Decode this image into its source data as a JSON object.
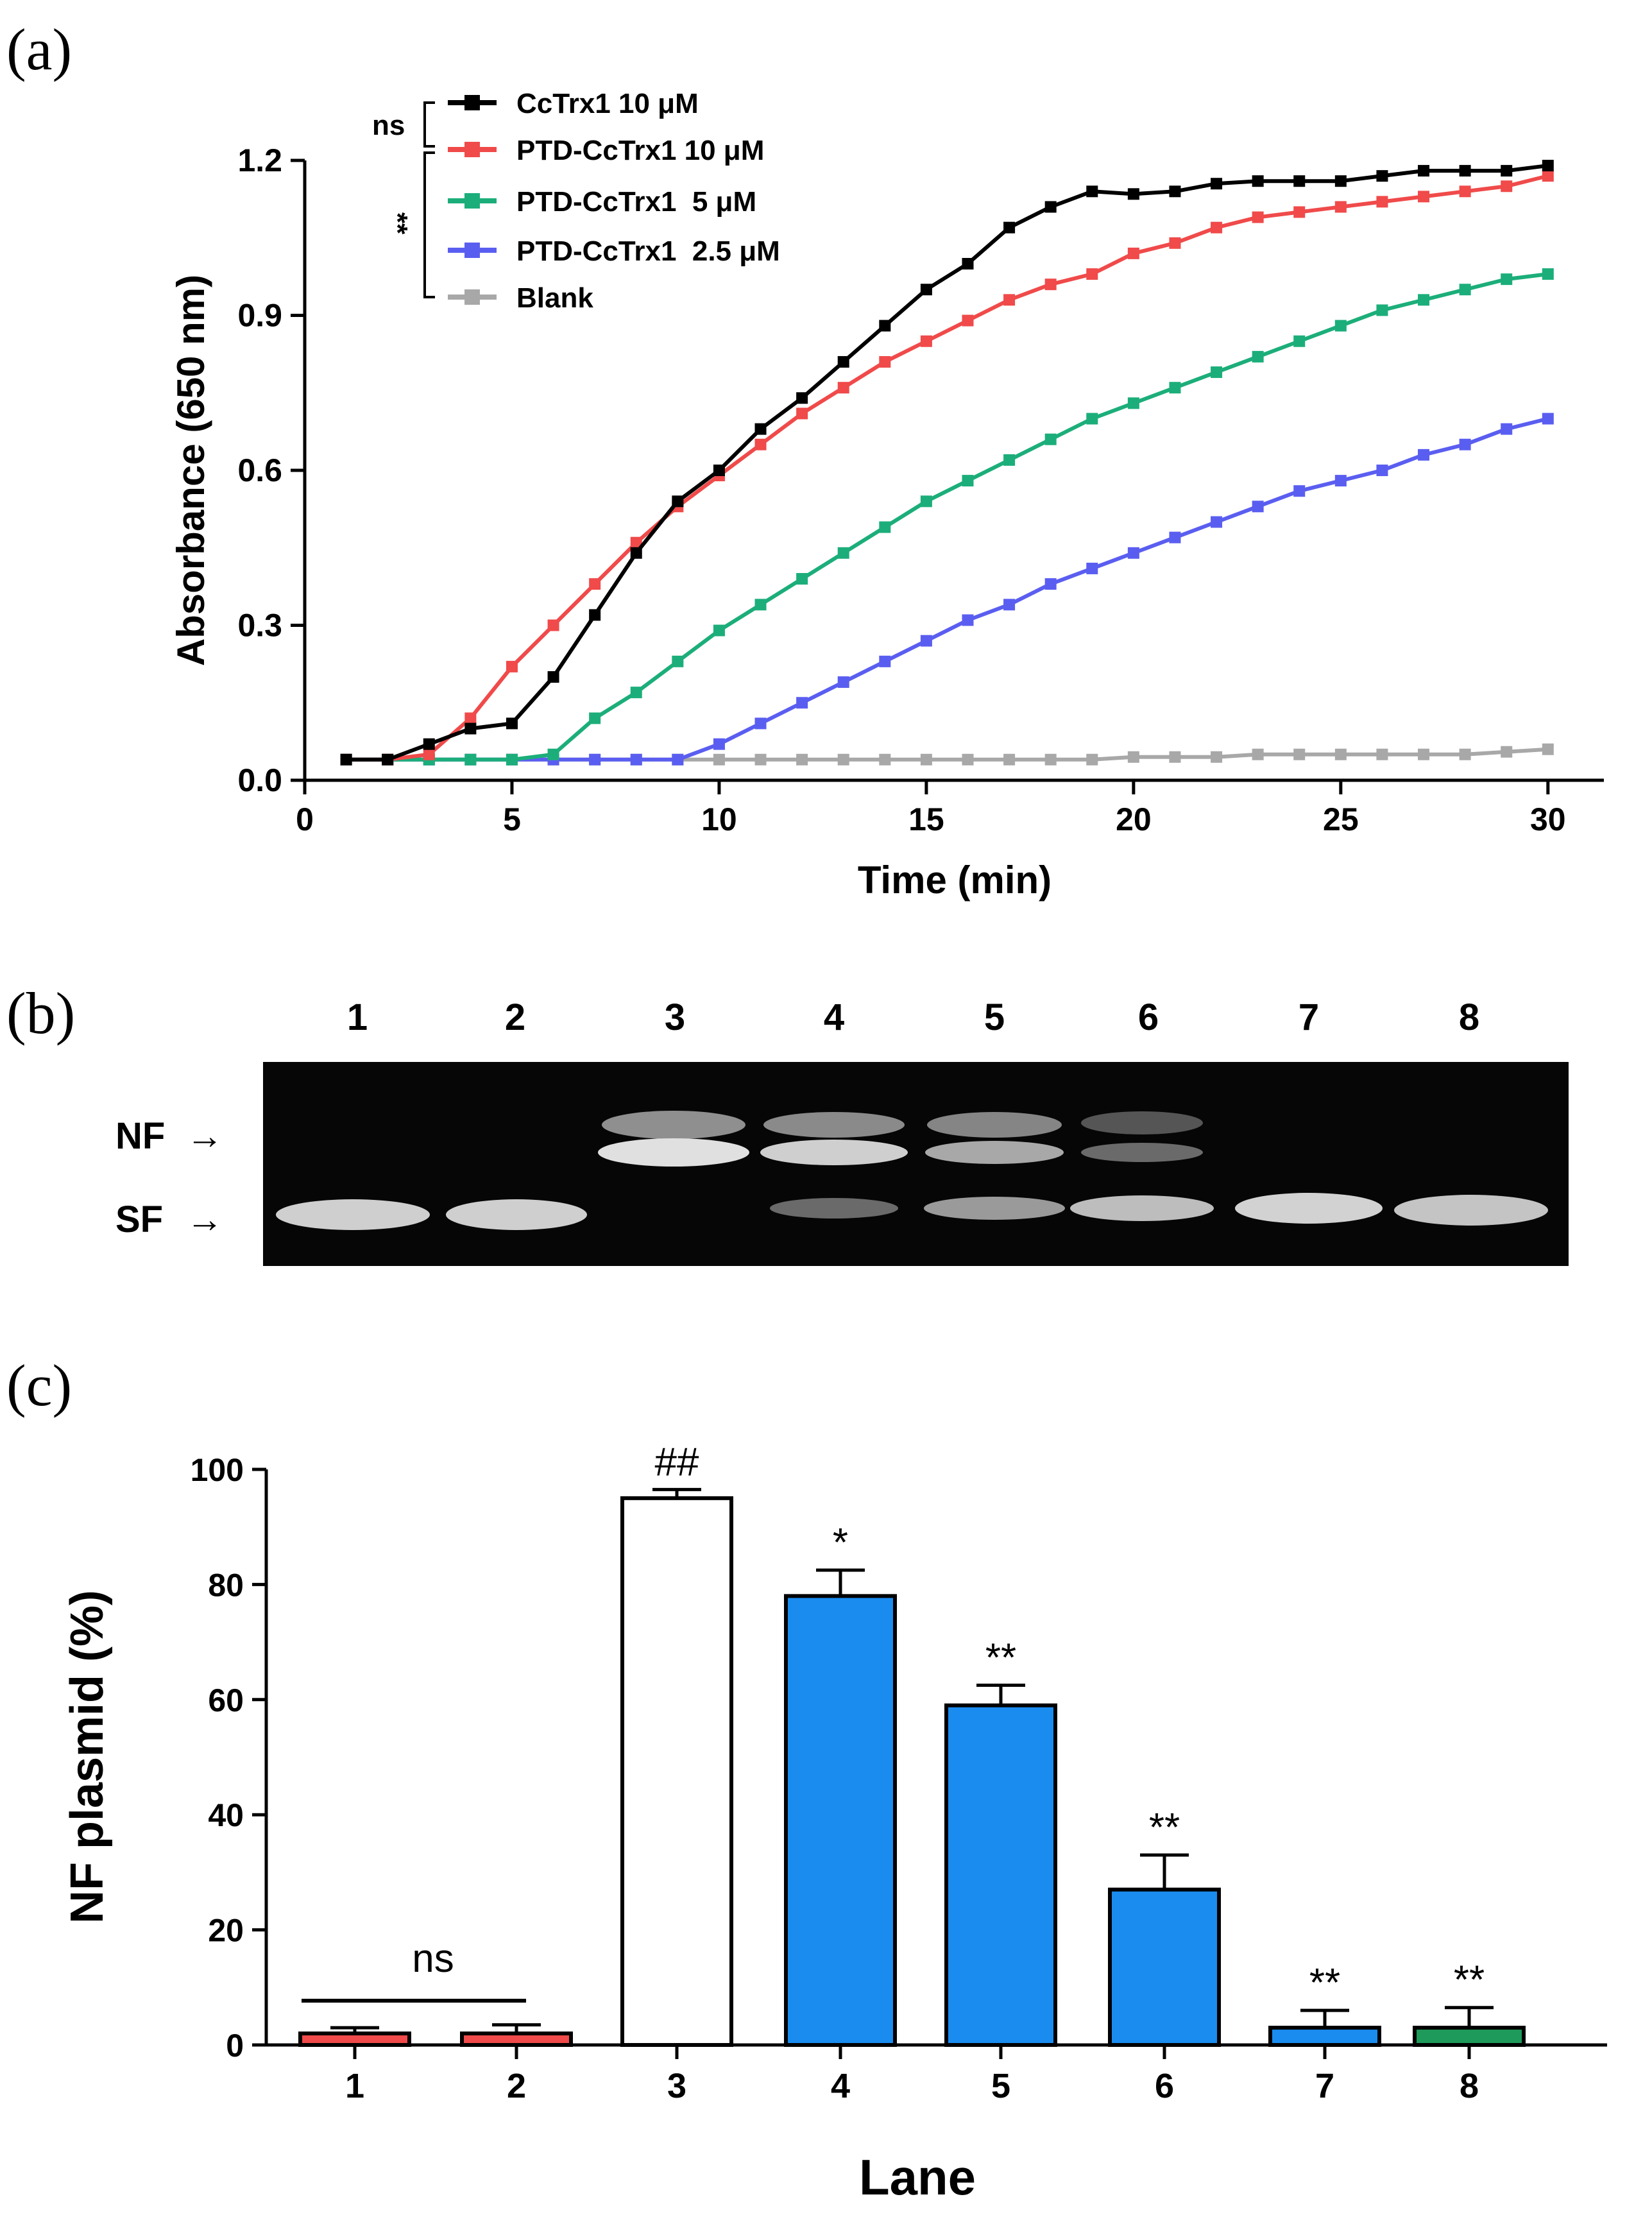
{
  "panel_labels": {
    "a": "(a)",
    "b": "(b)",
    "c": "(c)"
  },
  "chart_data": [
    {
      "type": "line",
      "panel": "(a)",
      "title": "",
      "xlabel": "Time (min)",
      "ylabel": "Absorbance (650 nm)",
      "xlim": [
        0,
        32
      ],
      "ylim": [
        0,
        1.2
      ],
      "xticks": [
        0,
        5,
        10,
        15,
        20,
        25,
        30
      ],
      "xtick_labels": [
        "0",
        "5",
        "10",
        "15",
        "20",
        "25",
        "30"
      ],
      "yticks": [
        0,
        0.3,
        0.6,
        0.9,
        1.2
      ],
      "ytick_labels": [
        "0.0",
        "0.3",
        "0.6",
        "0.9",
        "1.2"
      ],
      "x": [
        1,
        2,
        3,
        4,
        5,
        6,
        7,
        8,
        9,
        10,
        11,
        12,
        13,
        14,
        15,
        16,
        17,
        18,
        19,
        20,
        21,
        22,
        23,
        24,
        25,
        26,
        27,
        28,
        29,
        30
      ],
      "series": [
        {
          "name": "CcTrx1 10 μM",
          "color": "#000000",
          "values": [
            0.04,
            0.04,
            0.07,
            0.1,
            0.11,
            0.2,
            0.32,
            0.44,
            0.54,
            0.6,
            0.68,
            0.74,
            0.81,
            0.88,
            0.95,
            1.0,
            1.07,
            1.11,
            1.14,
            1.135,
            1.14,
            1.155,
            1.16,
            1.16,
            1.16,
            1.17,
            1.18,
            1.18,
            1.18,
            1.19
          ]
        },
        {
          "name": "PTD-CcTrx1 10 μM",
          "color": "#f04a4a",
          "values": [
            0.04,
            0.04,
            0.05,
            0.12,
            0.22,
            0.3,
            0.38,
            0.46,
            0.53,
            0.59,
            0.65,
            0.71,
            0.76,
            0.81,
            0.85,
            0.89,
            0.93,
            0.96,
            0.98,
            1.02,
            1.04,
            1.07,
            1.09,
            1.1,
            1.11,
            1.12,
            1.13,
            1.14,
            1.15,
            1.17
          ]
        },
        {
          "name": "PTD-CcTrx1  5 μM",
          "color": "#1cae7a",
          "values": [
            0.04,
            0.04,
            0.04,
            0.04,
            0.04,
            0.05,
            0.12,
            0.17,
            0.23,
            0.29,
            0.34,
            0.39,
            0.44,
            0.49,
            0.54,
            0.58,
            0.62,
            0.66,
            0.7,
            0.73,
            0.76,
            0.79,
            0.82,
            0.85,
            0.88,
            0.91,
            0.93,
            0.95,
            0.97,
            0.98
          ]
        },
        {
          "name": "PTD-CcTrx1  2.5 μM",
          "color": "#5a5ef0",
          "values": [
            0.04,
            0.04,
            0.04,
            0.04,
            0.04,
            0.04,
            0.04,
            0.04,
            0.04,
            0.07,
            0.11,
            0.15,
            0.19,
            0.23,
            0.27,
            0.31,
            0.34,
            0.38,
            0.41,
            0.44,
            0.47,
            0.5,
            0.53,
            0.56,
            0.58,
            0.6,
            0.63,
            0.65,
            0.68,
            0.7
          ]
        },
        {
          "name": "Blank",
          "color": "#a8a8a8",
          "values": [
            0.04,
            0.04,
            0.04,
            0.04,
            0.04,
            0.04,
            0.04,
            0.04,
            0.04,
            0.04,
            0.04,
            0.04,
            0.04,
            0.04,
            0.04,
            0.04,
            0.04,
            0.04,
            0.04,
            0.045,
            0.045,
            0.045,
            0.05,
            0.05,
            0.05,
            0.05,
            0.05,
            0.05,
            0.055,
            0.06
          ]
        }
      ],
      "significance": [
        {
          "label": "ns",
          "groups": [
            "CcTrx1 10 μM",
            "PTD-CcTrx1 10 μM"
          ]
        },
        {
          "label": "**",
          "groups": [
            "PTD-CcTrx1 10 μM",
            "PTD-CcTrx1  5 μM",
            "PTD-CcTrx1  2.5 μM",
            "Blank"
          ]
        }
      ]
    },
    {
      "type": "bar",
      "panel": "(c)",
      "title": "",
      "xlabel": "Lane",
      "ylabel": "NF plasmid (%)",
      "ylim": [
        0,
        100
      ],
      "yticks": [
        0,
        20,
        40,
        60,
        80,
        100
      ],
      "ytick_labels": [
        "0",
        "20",
        "40",
        "60",
        "80",
        "100"
      ],
      "categories": [
        "1",
        "2",
        "3",
        "4",
        "5",
        "6",
        "7",
        "8"
      ],
      "values": [
        2,
        2,
        95,
        78,
        59,
        27,
        3,
        3
      ],
      "errors": [
        1,
        1.5,
        1.5,
        4.5,
        3.5,
        6,
        3,
        3.5
      ],
      "bar_colors": [
        "#f04a4a",
        "#f04a4a",
        "#ffffff",
        "#1a8cf0",
        "#1a8cf0",
        "#1a8cf0",
        "#1a8cf0",
        "#1e9a5a"
      ],
      "annotations": [
        "",
        "",
        "##",
        "*",
        "**",
        "**",
        "**",
        "**"
      ],
      "group_annotation": {
        "label": "ns",
        "lanes": [
          "1",
          "2"
        ]
      }
    }
  ],
  "gel": {
    "lane_labels": [
      "1",
      "2",
      "3",
      "4",
      "5",
      "6",
      "7",
      "8"
    ],
    "band_labels": [
      "NF",
      "SF"
    ],
    "arrow": "→"
  }
}
